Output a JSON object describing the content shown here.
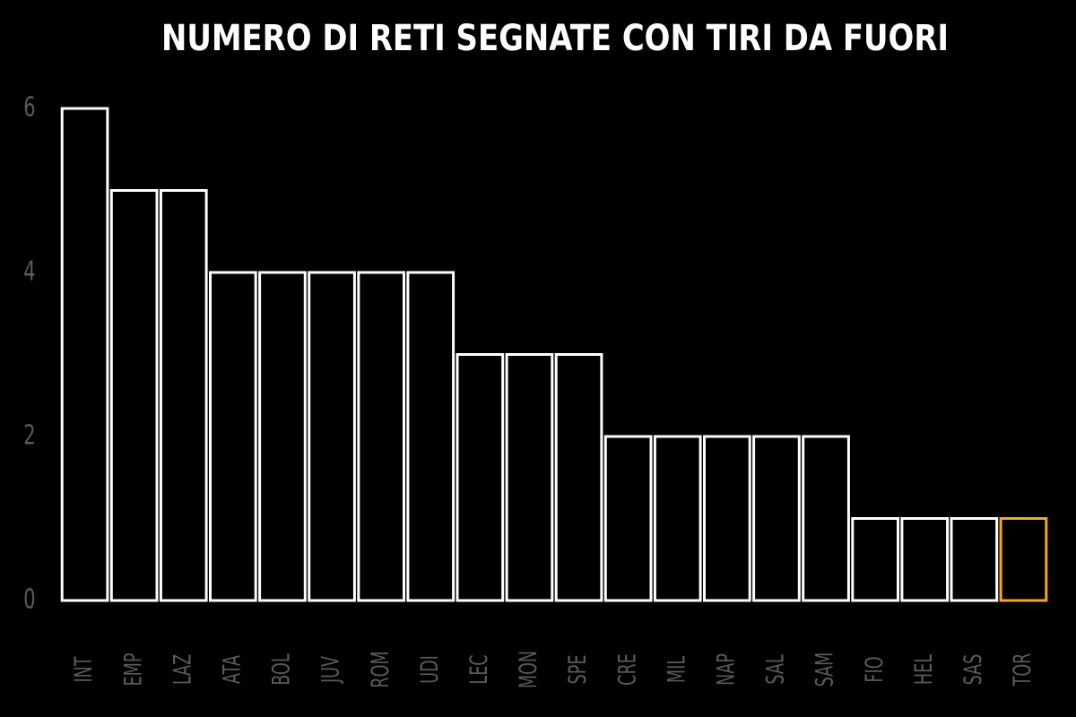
{
  "chart_data": {
    "type": "bar",
    "title": "NUMERO DI RETI SEGNATE CON TIRI DA FUORI",
    "categories": [
      "INT",
      "EMP",
      "LAZ",
      "ATA",
      "BOL",
      "JUV",
      "ROM",
      "UDI",
      "LEC",
      "MON",
      "SPE",
      "CRE",
      "MIL",
      "NAP",
      "SAL",
      "SAM",
      "FIO",
      "HEL",
      "SAS",
      "TOR"
    ],
    "values": [
      6,
      5,
      5,
      4,
      4,
      4,
      4,
      4,
      3,
      3,
      3,
      2,
      2,
      2,
      2,
      2,
      1,
      1,
      1,
      1
    ],
    "colors": [
      "#ffffff",
      "#ffffff",
      "#ffffff",
      "#ffffff",
      "#ffffff",
      "#ffffff",
      "#ffffff",
      "#ffffff",
      "#ffffff",
      "#ffffff",
      "#ffffff",
      "#ffffff",
      "#ffffff",
      "#ffffff",
      "#ffffff",
      "#ffffff",
      "#ffffff",
      "#ffffff",
      "#ffffff",
      "#f5a623"
    ],
    "ylim": [
      0,
      6
    ],
    "yticks": [
      0,
      2,
      4,
      6
    ],
    "grid": false
  }
}
